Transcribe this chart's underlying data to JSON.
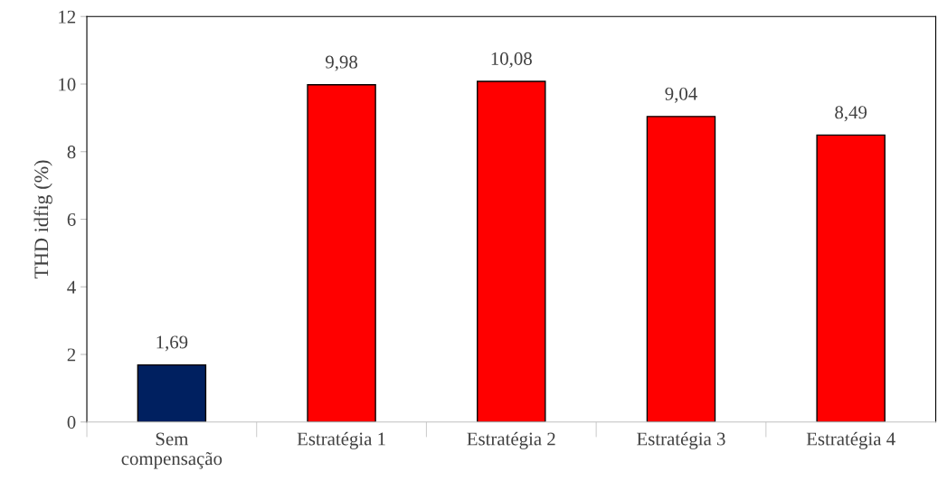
{
  "chart_data": {
    "type": "bar",
    "ylabel": "THD idfig (%)",
    "categories": [
      "Sem\ncompensação",
      "Estratégia 1",
      "Estratégia 2",
      "Estratégia 3",
      "Estratégia 4"
    ],
    "values": [
      1.69,
      9.98,
      10.08,
      9.04,
      8.49
    ],
    "colors": [
      "#002060",
      "#ff0000",
      "#ff0000",
      "#ff0000",
      "#ff0000"
    ],
    "value_labels": [
      "1,69",
      "9,98",
      "10,08",
      "9,04",
      "8,49"
    ],
    "ylim": [
      0,
      12
    ],
    "yticks": [
      0,
      2,
      4,
      6,
      8,
      10,
      12
    ],
    "grid": false,
    "legend": false
  }
}
